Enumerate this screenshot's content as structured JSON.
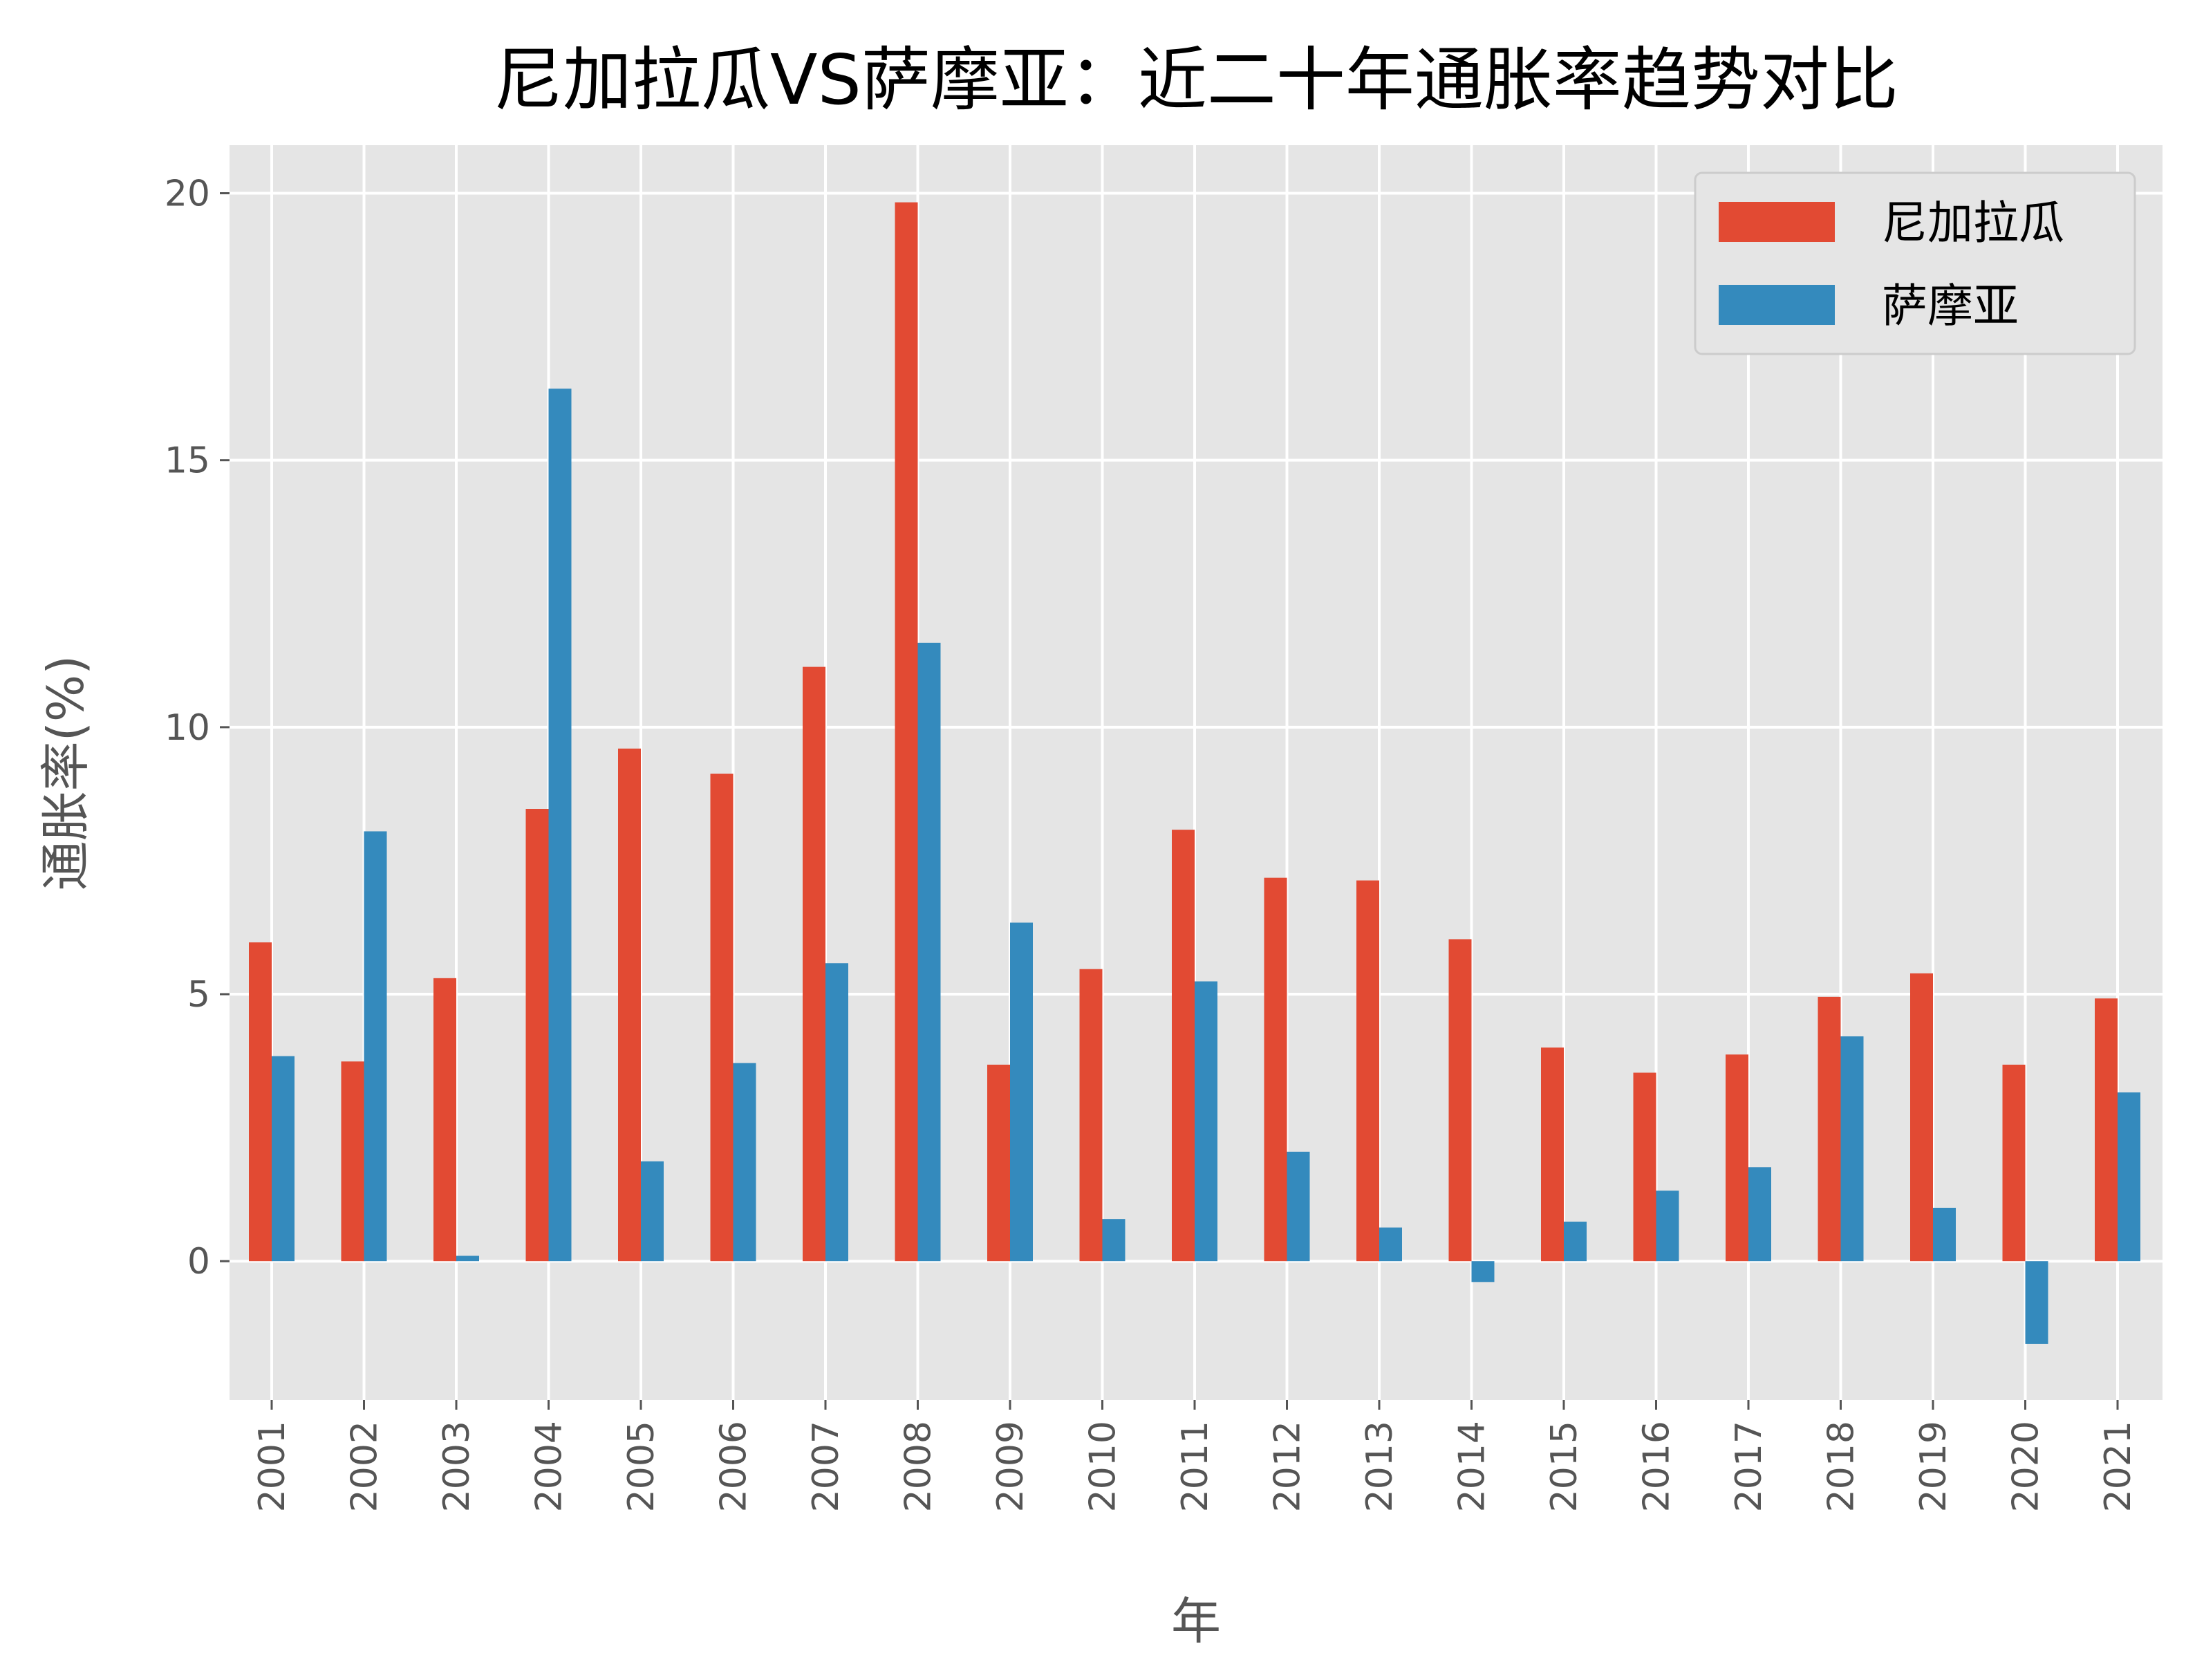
{
  "chart_data": {
    "type": "bar",
    "title": "尼加拉瓜VS萨摩亚：近二十年通胀率趋势对比",
    "xlabel": "年",
    "ylabel": "通胀率(%)",
    "ylim": [
      -2.6,
      20.9
    ],
    "yticks": [
      0,
      5,
      10,
      15,
      20
    ],
    "grid": true,
    "legend_position": "top-right",
    "categories": [
      "2001",
      "2002",
      "2003",
      "2004",
      "2005",
      "2006",
      "2007",
      "2008",
      "2009",
      "2010",
      "2011",
      "2012",
      "2013",
      "2014",
      "2015",
      "2016",
      "2017",
      "2018",
      "2019",
      "2020",
      "2021"
    ],
    "series": [
      {
        "name": "尼加拉瓜",
        "color": "#E24A33",
        "values": [
          5.97,
          3.74,
          5.3,
          8.47,
          9.6,
          9.13,
          11.13,
          19.83,
          3.68,
          5.47,
          8.08,
          7.18,
          7.13,
          6.03,
          4.0,
          3.53,
          3.87,
          4.95,
          5.39,
          3.68,
          4.92
        ]
      },
      {
        "name": "萨摩亚",
        "color": "#348ABD",
        "values": [
          3.84,
          8.05,
          0.1,
          16.34,
          1.87,
          3.71,
          5.58,
          11.58,
          6.34,
          0.79,
          5.24,
          2.05,
          0.63,
          -0.39,
          0.74,
          1.32,
          1.76,
          4.21,
          1.0,
          -1.55,
          3.16
        ]
      }
    ]
  }
}
